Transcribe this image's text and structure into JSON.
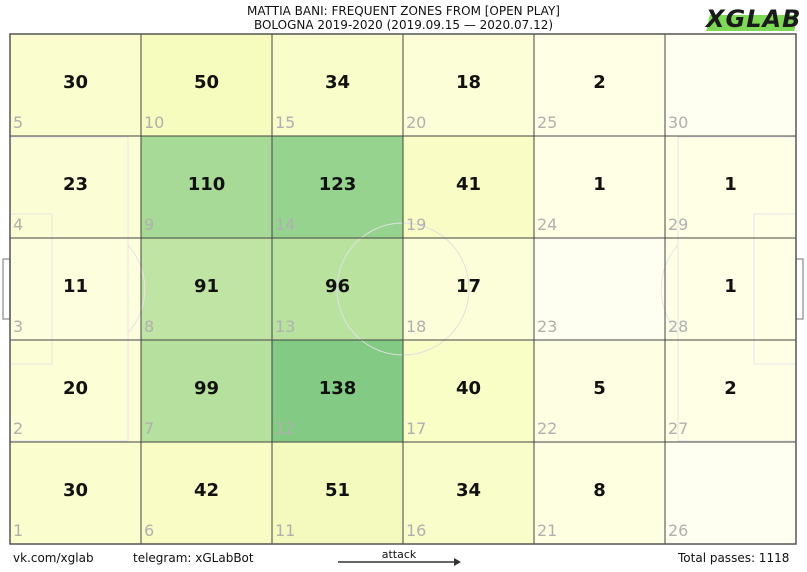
{
  "header": {
    "title_line1": "MATTIA BANI: FREQUENT ZONES FROM [OPEN PLAY]",
    "title_line2": "BOLOGNA 2019-2020 (2019.09.15 — 2020.07.12)",
    "logo_text": "XGLAB"
  },
  "footer": {
    "left_link": "vk.com/xglab",
    "middle_link": "telegram: xGLabBot",
    "attack_label": "attack",
    "total_passes": "Total passes: 1118"
  },
  "colors": {
    "grid_line": "#444444",
    "pitch_line": "#d9d9d9",
    "zone_number": "#b0b0b0",
    "value_text": "#111111",
    "scale_low": "#ffffe5",
    "scale_mid": "#f7fcb9",
    "scale_high": "#78c679",
    "logo_green": "#7ed957"
  },
  "chart_data": {
    "type": "heatmap",
    "title": "MATTIA BANI: FREQUENT ZONES FROM [OPEN PLAY]",
    "subtitle": "BOLOGNA 2019-2020 (2019.09.15 — 2020.07.12)",
    "columns": 6,
    "rows": 5,
    "direction": "attack left-to-right",
    "zones": [
      {
        "zone": "5",
        "col": 0,
        "row": 0,
        "value": 30
      },
      {
        "zone": "4",
        "col": 0,
        "row": 1,
        "value": 23
      },
      {
        "zone": "3",
        "col": 0,
        "row": 2,
        "value": 11
      },
      {
        "zone": "2",
        "col": 0,
        "row": 3,
        "value": 20
      },
      {
        "zone": "1",
        "col": 0,
        "row": 4,
        "value": 30
      },
      {
        "zone": "10",
        "col": 1,
        "row": 0,
        "value": 50
      },
      {
        "zone": "9",
        "col": 1,
        "row": 1,
        "value": 110
      },
      {
        "zone": "8",
        "col": 1,
        "row": 2,
        "value": 91
      },
      {
        "zone": "7",
        "col": 1,
        "row": 3,
        "value": 99
      },
      {
        "zone": "6",
        "col": 1,
        "row": 4,
        "value": 42
      },
      {
        "zone": "15",
        "col": 2,
        "row": 0,
        "value": 34
      },
      {
        "zone": "14",
        "col": 2,
        "row": 1,
        "value": 123
      },
      {
        "zone": "13",
        "col": 2,
        "row": 2,
        "value": 96
      },
      {
        "zone": "12",
        "col": 2,
        "row": 3,
        "value": 138
      },
      {
        "zone": "11",
        "col": 2,
        "row": 4,
        "value": 51
      },
      {
        "zone": "20",
        "col": 3,
        "row": 0,
        "value": 18
      },
      {
        "zone": "19",
        "col": 3,
        "row": 1,
        "value": 41
      },
      {
        "zone": "18",
        "col": 3,
        "row": 2,
        "value": 17
      },
      {
        "zone": "17",
        "col": 3,
        "row": 3,
        "value": 40
      },
      {
        "zone": "16",
        "col": 3,
        "row": 4,
        "value": 34
      },
      {
        "zone": "25",
        "col": 4,
        "row": 0,
        "value": 2
      },
      {
        "zone": "24",
        "col": 4,
        "row": 1,
        "value": 1
      },
      {
        "zone": "23",
        "col": 4,
        "row": 2,
        "value": null
      },
      {
        "zone": "22",
        "col": 4,
        "row": 3,
        "value": 5
      },
      {
        "zone": "21",
        "col": 4,
        "row": 4,
        "value": 8
      },
      {
        "zone": "30",
        "col": 5,
        "row": 0,
        "value": null
      },
      {
        "zone": "29",
        "col": 5,
        "row": 1,
        "value": 1
      },
      {
        "zone": "28",
        "col": 5,
        "row": 2,
        "value": 1
      },
      {
        "zone": "27",
        "col": 5,
        "row": 3,
        "value": 2
      },
      {
        "zone": "26",
        "col": 5,
        "row": 4,
        "value": null
      }
    ]
  }
}
